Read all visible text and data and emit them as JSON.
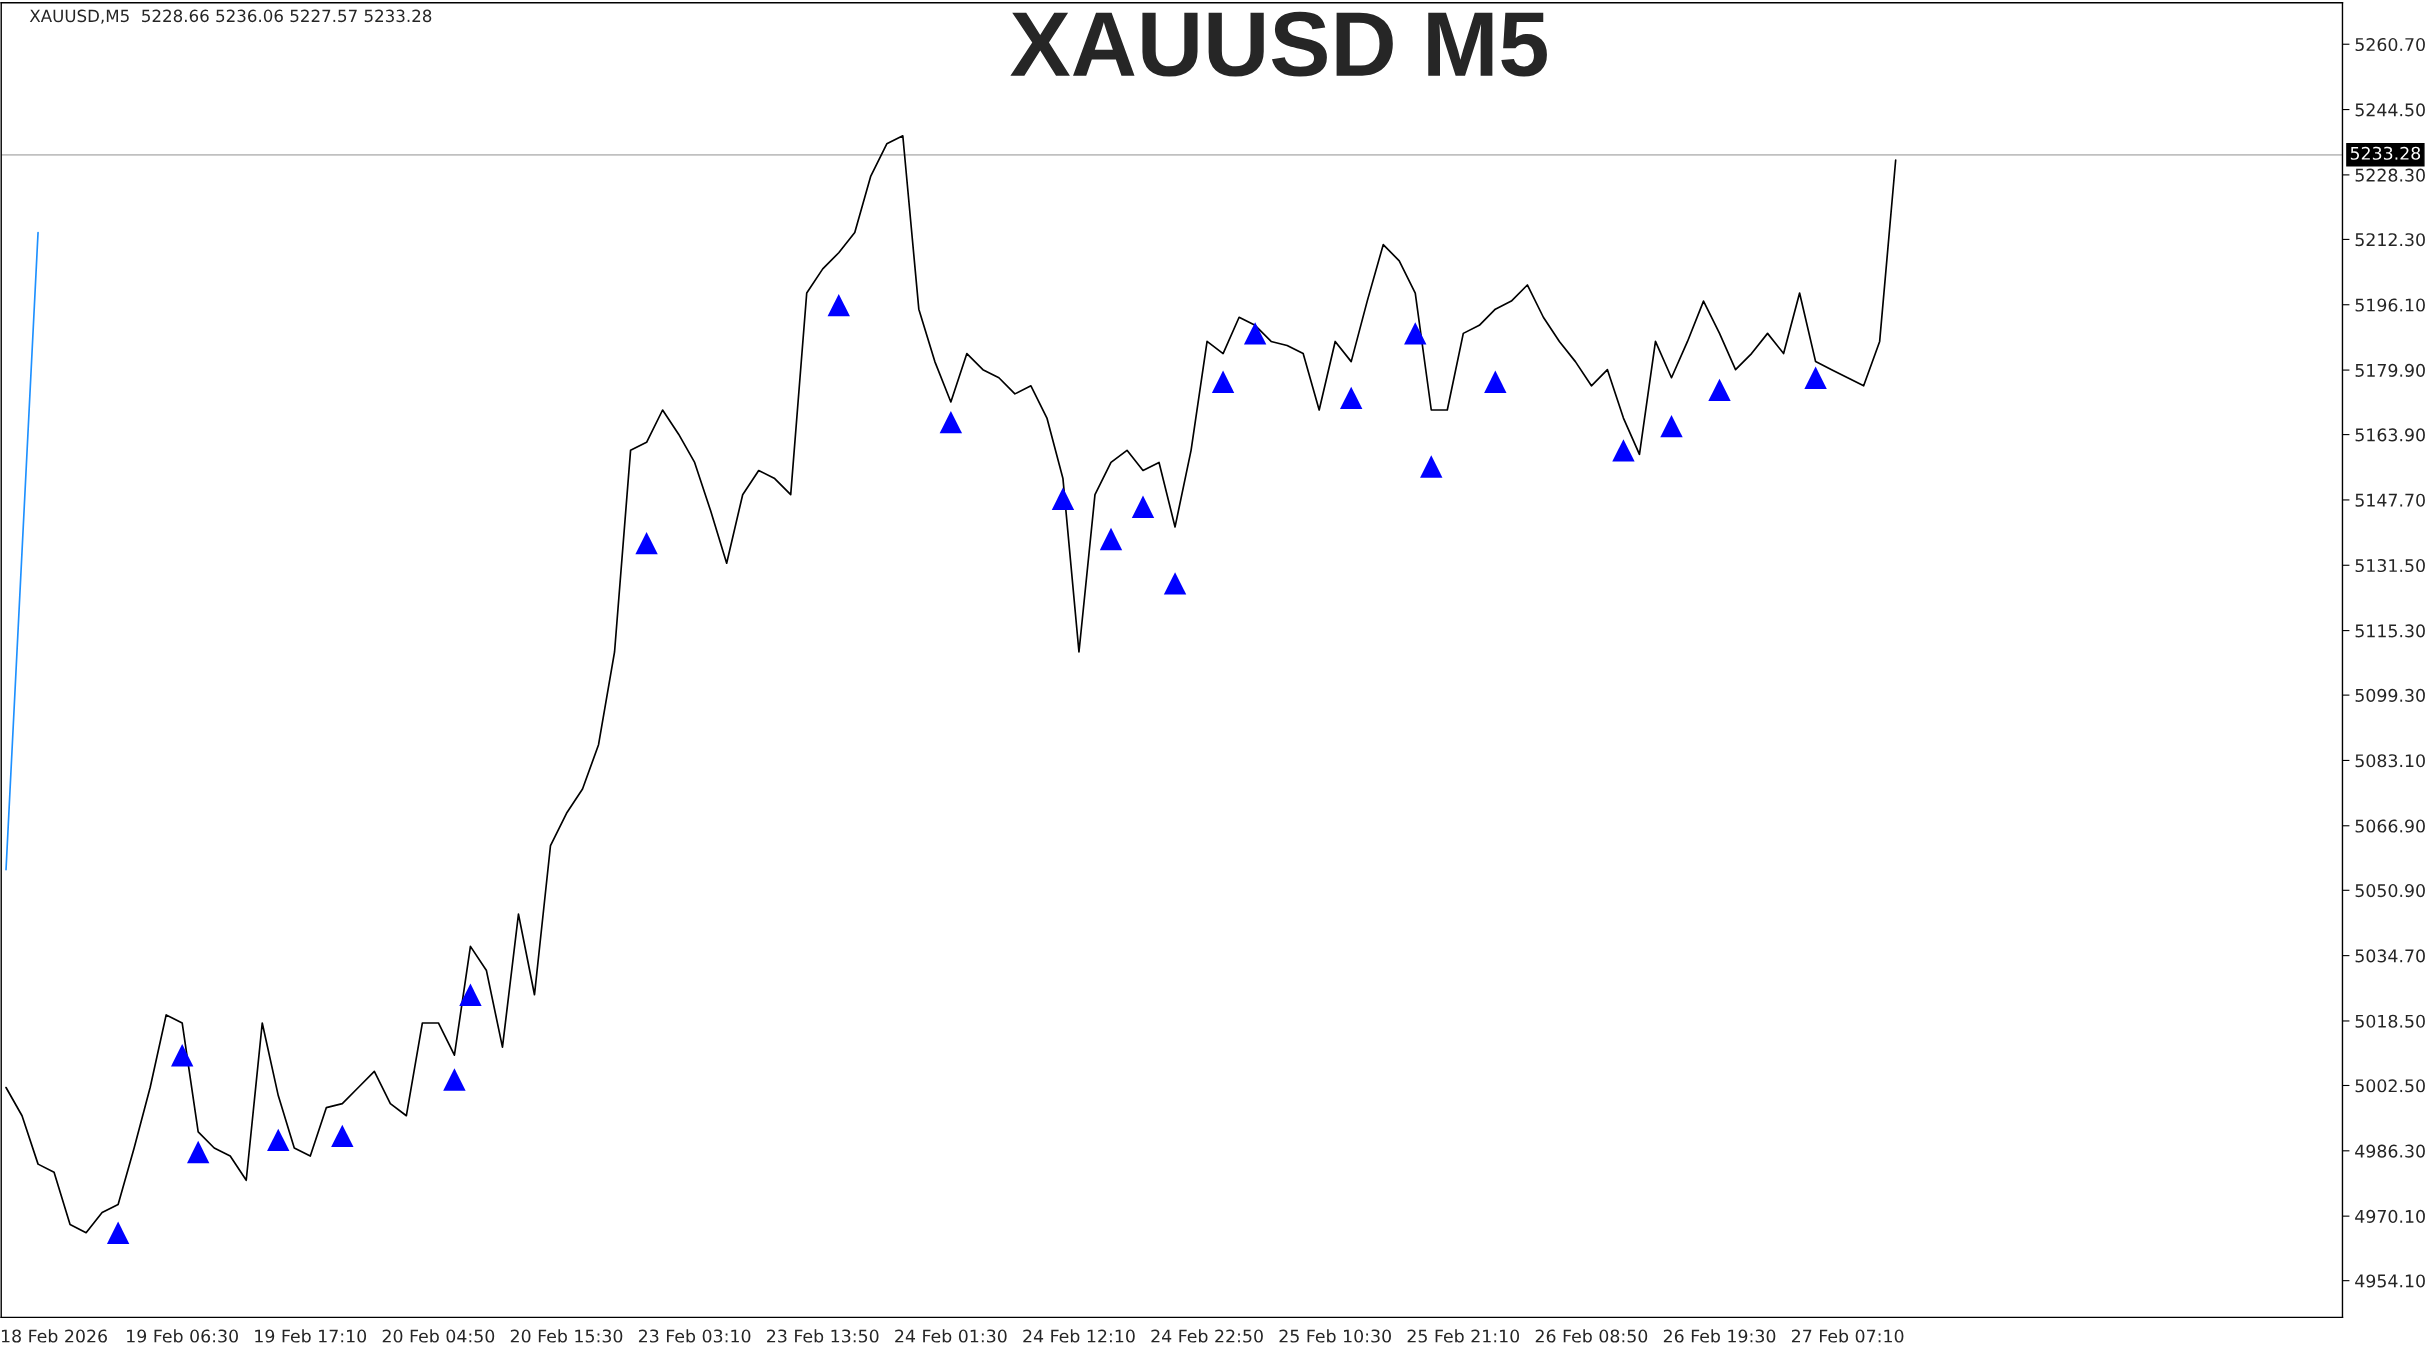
{
  "chart_data": {
    "type": "line",
    "title": "XAUUSD M5",
    "annotations": [
      "XAUUSD,M5  5228.66 5236.06 5227.57 5233.28"
    ],
    "categories": [
      null,
      null,
      null,
      "18 Feb 2026",
      null,
      null,
      null,
      null,
      null,
      null,
      null,
      "19 Feb 06:30",
      null,
      null,
      null,
      null,
      null,
      null,
      null,
      "19 Feb 17:10",
      null,
      null,
      null,
      null,
      null,
      null,
      null,
      "20 Feb 04:50",
      null,
      null,
      null,
      null,
      null,
      null,
      null,
      "20 Feb 15:30",
      null,
      null,
      null,
      null,
      null,
      null,
      null,
      "23 Feb 03:10",
      null,
      null,
      null,
      null,
      null,
      null,
      null,
      "23 Feb 13:50",
      null,
      null,
      null,
      null,
      null,
      null,
      null,
      "24 Feb 01:30",
      null,
      null,
      null,
      null,
      null,
      null,
      null,
      "24 Feb 12:10",
      null,
      null,
      null,
      null,
      null,
      null,
      null,
      "24 Feb 22:50",
      null,
      null,
      null,
      null,
      null,
      null,
      null,
      "25 Feb 10:30",
      null,
      null,
      null,
      null,
      null,
      null,
      null,
      "25 Feb 21:10",
      null,
      null,
      null,
      null,
      null,
      null,
      null,
      "26 Feb 08:50",
      null,
      null,
      null,
      null,
      null,
      null,
      null,
      "26 Feb 19:30",
      null,
      null,
      null,
      null,
      null,
      null,
      null,
      "27 Feb 07:10",
      null,
      null,
      null,
      null,
      null,
      null,
      null,
      null,
      null,
      null,
      null,
      null,
      null,
      null,
      null,
      null,
      null,
      null,
      null,
      null,
      null,
      null,
      null,
      null,
      null,
      null,
      null,
      null,
      null,
      null
    ],
    "series": [
      {
        "color": "#000000",
        "values": [
          5002,
          4995,
          4983,
          4981,
          4968,
          4966,
          4971,
          4973,
          4987,
          5002,
          5020,
          5018,
          4991,
          4987,
          4985,
          4979,
          5018,
          5000,
          4987,
          4985,
          4997,
          4998,
          5002,
          5006,
          4998,
          4995,
          5018,
          5018,
          5010,
          5037,
          5031,
          5012,
          5045,
          5025,
          5062,
          5070,
          5076,
          5087,
          5110,
          5160,
          5162,
          5170,
          5164,
          5157,
          5145,
          5132,
          5149,
          5155,
          5153,
          5149,
          5199,
          5205,
          5209,
          5214,
          5228,
          5236,
          5238,
          5195,
          5182,
          5172,
          5184,
          5180,
          5178,
          5174,
          5176,
          5168,
          5153,
          5110,
          5149,
          5157,
          5160,
          5155,
          5157,
          5141,
          5160,
          5187,
          5184,
          5193,
          5191,
          5187,
          5186,
          5184,
          5170,
          5187,
          5182,
          5197,
          5211,
          5207,
          5199,
          5170,
          5170,
          5189,
          5191,
          5195,
          5197,
          5201,
          5193,
          5187,
          5182,
          5176,
          5180,
          5168,
          5159,
          5187,
          5178,
          5187,
          5197,
          5189,
          5180,
          5184,
          5189,
          5184,
          5199,
          5182,
          5180,
          5178,
          5176,
          5187,
          5232,
          null,
          null,
          null,
          null,
          null,
          null,
          null,
          null,
          null,
          null,
          null,
          null,
          null,
          null,
          null,
          null,
          null,
          null,
          null,
          null,
          null,
          null,
          null,
          null,
          null,
          null,
          null
        ]
      },
      {
        "type": "line",
        "color": "#1e90ff",
        "values": [
          5056,
          5135,
          5214,
          null,
          null,
          null,
          null,
          null,
          null,
          null,
          null,
          null,
          null,
          null,
          null,
          null,
          null,
          null,
          null,
          null,
          null,
          null,
          null,
          null,
          null,
          null,
          null,
          null,
          null,
          null,
          null,
          null,
          null,
          null,
          null,
          null,
          null,
          null,
          null,
          null,
          null,
          null,
          null,
          null,
          null,
          null,
          null,
          null,
          null,
          null,
          null,
          null,
          null,
          null,
          null,
          null,
          null,
          null,
          null,
          null,
          null,
          null,
          null,
          null,
          null,
          null,
          null,
          null,
          null,
          null,
          null,
          null,
          null,
          null,
          null,
          null,
          null,
          null,
          null,
          null,
          null,
          null,
          null,
          null,
          null,
          null,
          null,
          null,
          null,
          null,
          null,
          null,
          null,
          null,
          null,
          null,
          null,
          null,
          null,
          null,
          null,
          null,
          null,
          null,
          null,
          null,
          null,
          null,
          null,
          null,
          null,
          null,
          null,
          null,
          null,
          null,
          null,
          null,
          null,
          null,
          null,
          null,
          null,
          null,
          null,
          null,
          null,
          null,
          null,
          null,
          null,
          null,
          null,
          null,
          null,
          null,
          null,
          null,
          null,
          null,
          null,
          null,
          null,
          null,
          null,
          null
        ]
      },
      {
        "type": "scatter",
        "color": "#0000ff",
        "marker": "triangle",
        "values": [
          null,
          null,
          null,
          null,
          null,
          null,
          null,
          4966,
          null,
          null,
          null,
          5010,
          4986,
          null,
          null,
          null,
          null,
          4989,
          null,
          null,
          null,
          4990,
          null,
          null,
          null,
          null,
          null,
          null,
          5004,
          5025,
          null,
          null,
          null,
          null,
          null,
          null,
          null,
          null,
          null,
          null,
          5137,
          null,
          null,
          null,
          null,
          null,
          null,
          null,
          null,
          null,
          null,
          null,
          5196,
          null,
          null,
          null,
          null,
          null,
          null,
          5167,
          null,
          null,
          null,
          null,
          null,
          null,
          5148,
          null,
          null,
          5138,
          null,
          5146,
          null,
          5127,
          null,
          null,
          5177,
          null,
          5189,
          null,
          null,
          null,
          null,
          null,
          5173,
          null,
          null,
          null,
          5189,
          5156,
          null,
          null,
          null,
          5177,
          null,
          null,
          null,
          null,
          null,
          null,
          null,
          5160,
          null,
          null,
          5166,
          null,
          null,
          5175,
          null,
          null,
          null,
          null,
          null,
          5178,
          null,
          null,
          null,
          null,
          null,
          null,
          null,
          null,
          null,
          null,
          null,
          null,
          null,
          null,
          null,
          null,
          null,
          null,
          null,
          null,
          null,
          null,
          null,
          null,
          null,
          null,
          null,
          null,
          null,
          null,
          null,
          null
        ]
      }
    ],
    "ylim": [
      4945,
      5271
    ],
    "yticks": [
      {
        "value": 4954.1,
        "label": "4954.10"
      },
      {
        "value": 4970.1,
        "label": "4970.10"
      },
      {
        "value": 4986.3,
        "label": "4986.30"
      },
      {
        "value": 5002.5,
        "label": "5002.50"
      },
      {
        "value": 5018.5,
        "label": "5018.50"
      },
      {
        "value": 5034.7,
        "label": "5034.70"
      },
      {
        "value": 5050.9,
        "label": "5050.90"
      },
      {
        "value": 5066.9,
        "label": "5066.90"
      },
      {
        "value": 5083.1,
        "label": "5083.10"
      },
      {
        "value": 5099.3,
        "label": "5099.30"
      },
      {
        "value": 5115.3,
        "label": "5115.30"
      },
      {
        "value": 5131.5,
        "label": "5131.50"
      },
      {
        "value": 5147.7,
        "label": "5147.70"
      },
      {
        "value": 5163.9,
        "label": "5163.90"
      },
      {
        "value": 5179.9,
        "label": "5179.90"
      },
      {
        "value": 5196.1,
        "label": "5196.10"
      },
      {
        "value": 5212.3,
        "label": "5212.30"
      },
      {
        "value": 5228.3,
        "label": "5228.30"
      },
      {
        "value": 5244.5,
        "label": "5244.50"
      },
      {
        "value": 5260.7,
        "label": "5260.70"
      }
    ],
    "ref_lines": [
      {
        "axis": "y",
        "value": 5233.28,
        "label": "5233.28",
        "color": "#c0c0c0"
      }
    ],
    "grid": false,
    "legend": false
  }
}
